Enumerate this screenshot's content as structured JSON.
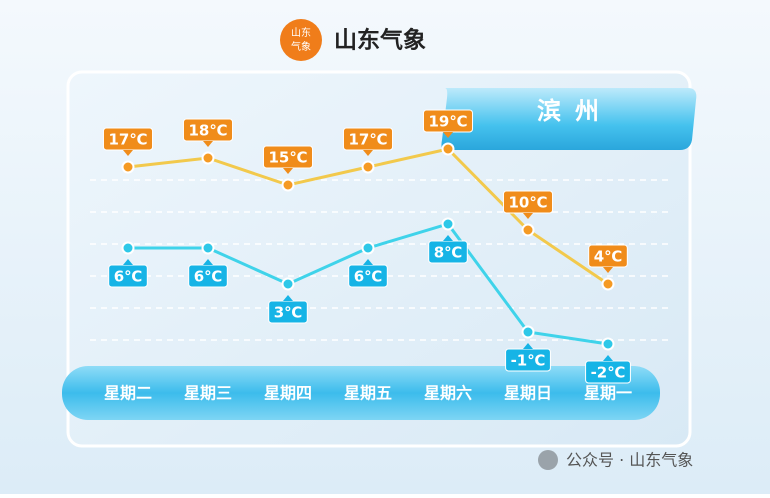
{
  "header": {
    "logo": [
      "山东",
      "气象"
    ],
    "brand": "山东气象"
  },
  "chart_data": {
    "type": "line",
    "title": "滨州",
    "categories": [
      "星期二",
      "星期三",
      "星期四",
      "星期五",
      "星期六",
      "星期日",
      "星期一"
    ],
    "series": [
      {
        "color": "#f2c94c",
        "point_color": "#f59a23",
        "label_color": "#f08c1a",
        "values": [
          17,
          18,
          15,
          17,
          19,
          10,
          4
        ],
        "value_labels": [
          "17℃",
          "18℃",
          "15℃",
          "17℃",
          "19℃",
          "10℃",
          "4℃"
        ]
      },
      {
        "color": "#3fd3ea",
        "point_color": "#2ec8e8",
        "label_color": "#16b4e6",
        "axis": "y2",
        "values": [
          6,
          6,
          3,
          6,
          8,
          -1,
          -2
        ],
        "value_labels": [
          "6℃",
          "6℃",
          "3℃",
          "6℃",
          "8℃",
          "-1℃",
          "-2℃"
        ]
      }
    ],
    "ylim": [
      -4,
      24
    ],
    "y2lim": [
      -3,
      18
    ]
  },
  "footer": {
    "watermark": "公众号 · 山东气象"
  }
}
